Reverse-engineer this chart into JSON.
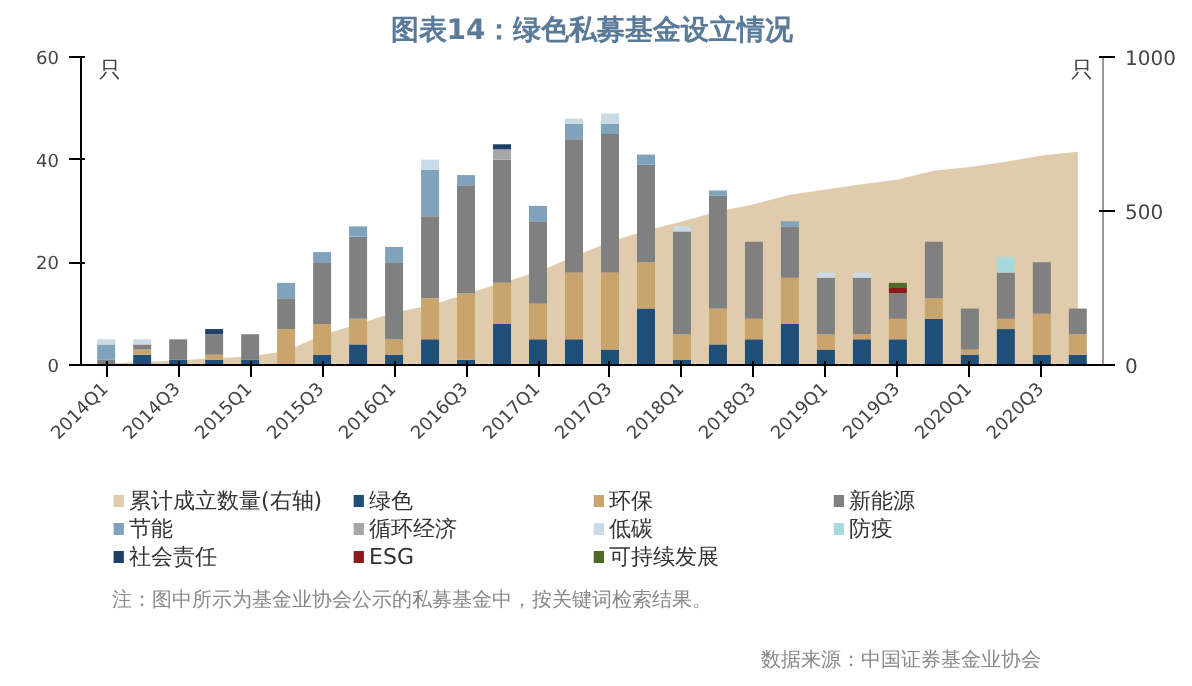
{
  "chart_data": {
    "type": "bar",
    "stacked": true,
    "title": "图表14：绿色私募基金设立情况",
    "ylabel": "只",
    "y2label": "只",
    "categories": [
      "2014Q1",
      null,
      "2014Q3",
      null,
      "2015Q1",
      null,
      "2015Q3",
      null,
      "2016Q1",
      null,
      "2016Q3",
      null,
      "2017Q1",
      null,
      "2017Q3",
      null,
      "2018Q1",
      null,
      "2018Q3",
      null,
      "2019Q1",
      null,
      "2019Q3",
      null,
      "2020Q1",
      null,
      "2020Q3",
      null
    ],
    "ylim": [
      0,
      60
    ],
    "yticks": [
      0,
      20,
      40,
      60
    ],
    "y2lim": [
      0,
      1000
    ],
    "y2ticks": [
      0,
      500,
      1000
    ],
    "grid": false,
    "legend": "bottom",
    "series": [
      {
        "name": "累计成立数量(右轴)",
        "type": "area",
        "axis": "y2",
        "color": "#c9a06a",
        "values": [
          5,
          10,
          15,
          22,
          28,
          45,
          97,
          133,
          170,
          194,
          230,
          267,
          303,
          352,
          400,
          437,
          466,
          498,
          522,
          553,
          570,
          587,
          602,
          631,
          643,
          660,
          680,
          692
        ]
      },
      {
        "name": "绿色",
        "color": "#1f4e79",
        "values": [
          0,
          2,
          1,
          1,
          1,
          0,
          2,
          4,
          2,
          5,
          1,
          8,
          5,
          5,
          3,
          11,
          1,
          4,
          5,
          8,
          3,
          5,
          5,
          9,
          2,
          7,
          2,
          2
        ]
      },
      {
        "name": "环保",
        "color": "#c9a46c",
        "values": [
          0,
          1,
          0,
          1,
          0,
          7,
          6,
          5,
          3,
          8,
          13,
          8,
          7,
          13,
          15,
          9,
          5,
          7,
          4,
          9,
          3,
          1,
          4,
          4,
          1,
          2,
          8,
          4
        ]
      },
      {
        "name": "新能源",
        "color": "#808080",
        "values": [
          1,
          1,
          4,
          4,
          5,
          6,
          12,
          16,
          15,
          16,
          21,
          24,
          16,
          26,
          27,
          19,
          20,
          22,
          15,
          10,
          11,
          11,
          5,
          11,
          8,
          9,
          10,
          5
        ]
      },
      {
        "name": "节能",
        "color": "#7fa3bd",
        "values": [
          3,
          0,
          0,
          0,
          0,
          3,
          2,
          2,
          3,
          9,
          2,
          0,
          3,
          3,
          2,
          2,
          0,
          1,
          0,
          1,
          0,
          0,
          0,
          0,
          0,
          0,
          0,
          0
        ]
      },
      {
        "name": "循环经济",
        "color": "#a6a6a6",
        "values": [
          0,
          0,
          0,
          0,
          0,
          0,
          0,
          0,
          0,
          0,
          0,
          2,
          0,
          0,
          0,
          0,
          0,
          0,
          0,
          0,
          0,
          0,
          0,
          0,
          0,
          0,
          0,
          0
        ]
      },
      {
        "name": "低碳",
        "color": "#c9dbe6",
        "values": [
          1,
          1,
          0,
          0,
          0,
          0,
          0,
          0,
          0,
          2,
          0,
          0,
          0,
          1,
          2,
          0,
          1,
          0,
          0,
          0,
          1,
          1,
          0,
          0,
          0,
          0,
          0,
          0
        ]
      },
      {
        "name": "防疫",
        "color": "#a8dadc",
        "values": [
          0,
          0,
          0,
          0,
          0,
          0,
          0,
          0,
          0,
          0,
          0,
          0,
          0,
          0,
          0,
          0,
          0,
          0,
          0,
          0,
          0,
          0,
          0,
          0,
          0,
          3,
          0,
          0
        ]
      },
      {
        "name": "社会责任",
        "color": "#1f3f66",
        "values": [
          0,
          0,
          0,
          1,
          0,
          0,
          0,
          0,
          0,
          0,
          0,
          1,
          0,
          0,
          0,
          0,
          0,
          0,
          0,
          0,
          0,
          0,
          0,
          0,
          0,
          0,
          0,
          0
        ]
      },
      {
        "name": "ESG",
        "color": "#8b1a1a",
        "values": [
          0,
          0,
          0,
          0,
          0,
          0,
          0,
          0,
          0,
          0,
          0,
          0,
          0,
          0,
          0,
          0,
          0,
          0,
          0,
          0,
          0,
          0,
          1,
          0,
          0,
          0,
          0,
          0
        ]
      },
      {
        "name": "可持续发展",
        "color": "#4f6b2a",
        "values": [
          0,
          0,
          0,
          0,
          0,
          0,
          0,
          0,
          0,
          0,
          0,
          0,
          0,
          0,
          0,
          0,
          0,
          0,
          0,
          0,
          0,
          0,
          1,
          0,
          0,
          0,
          0,
          0
        ]
      }
    ],
    "annotations": [
      "注：图中所示为基金业协会公示的私募基金中，按关键词检索结果。",
      "数据来源：中国证券基金业协会"
    ]
  }
}
